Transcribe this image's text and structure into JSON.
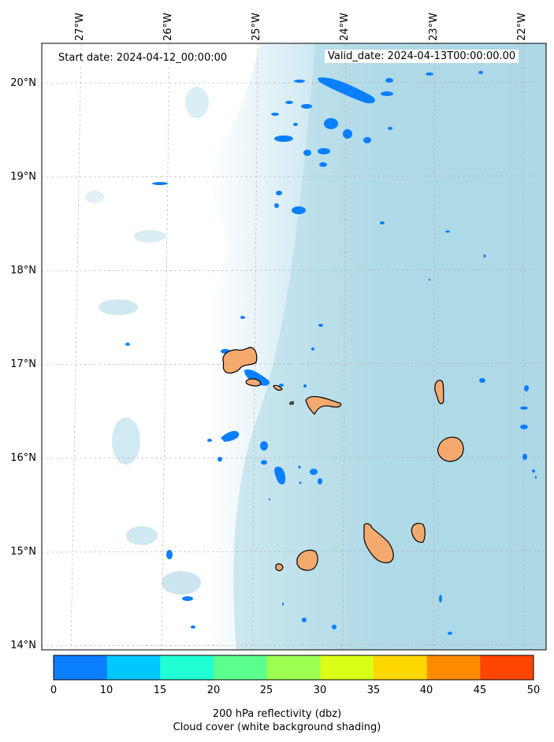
{
  "start_date_label": "Start date: 2024-04-12_00:00:00",
  "valid_date_label": "Valid_date: 2024-04-13T00:00:00.00",
  "longitude_labels": [
    "27°W",
    "26°W",
    "25°W",
    "24°W",
    "23°W",
    "22°W"
  ],
  "latitude_labels": [
    "20°N",
    "19°N",
    "18°N",
    "17°N",
    "16°N",
    "15°N",
    "14°N"
  ],
  "colorbar": {
    "ticks": [
      "0",
      "10",
      "15",
      "20",
      "25",
      "30",
      "35",
      "40",
      "45",
      "50"
    ],
    "colors": [
      "#0a7fff",
      "#00c8ff",
      "#22ffd5",
      "#5bff8d",
      "#9dff52",
      "#d9ff17",
      "#ffd700",
      "#ff8c00",
      "#ff4500"
    ],
    "label_line1": "200 hPa reflectivity (dbz)",
    "label_line2": "Cloud cover (white background shading)"
  },
  "colors": {
    "cloud_shading": "#add8e6",
    "land": "#f4a96f",
    "reflectivity_low": "#0a7fff"
  }
}
